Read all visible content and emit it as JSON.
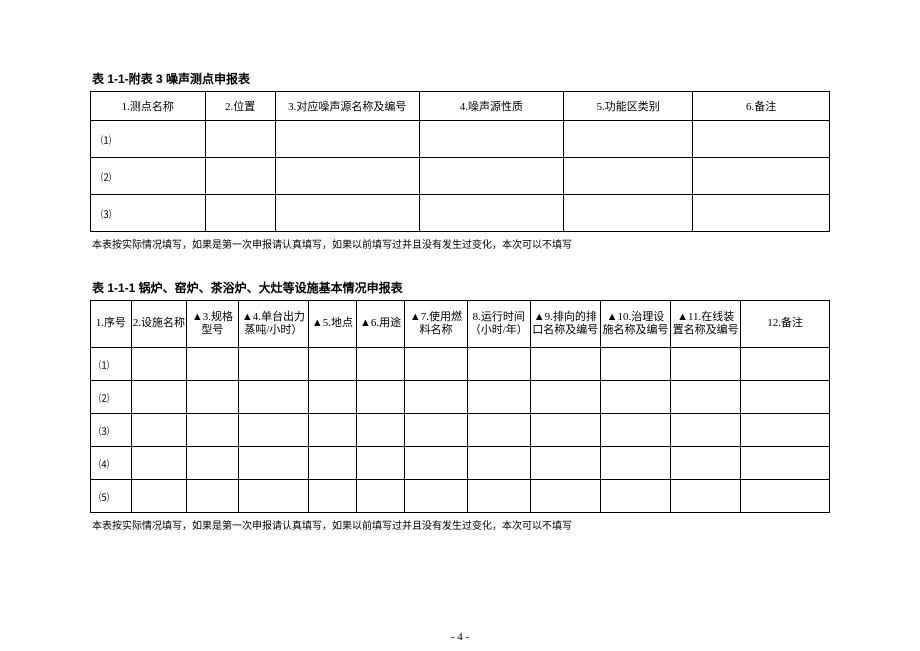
{
  "table1": {
    "title": "表 1-1-附表 3  噪声测点申报表",
    "headers": [
      "1.测点名称",
      "2.位置",
      "3.对应噪声源名称及编号",
      "4.噪声源性质",
      "5.功能区类别",
      "6.备注"
    ],
    "col_widths_pct": [
      15.5,
      9.5,
      19.5,
      19.5,
      17.5,
      18.5
    ],
    "rows": [
      "⑴",
      "⑵",
      "⑶"
    ],
    "note": "本表按实际情况填写，如果是第一次申报请认真填写，如果以前填写过并且没有发生过变化，本次可以不填写"
  },
  "table2": {
    "title": "表 1-1-1 锅炉、窑炉、茶浴炉、大灶等设施基本情况申报表",
    "headers": [
      "1.序号",
      "2.设施名称",
      "▲3.规格型号",
      "▲4.单台出力蒸吨/小时）",
      "▲5.地点",
      "▲6.用途",
      "▲7.使用燃料名称",
      "8.运行时间（小时/年）",
      "▲9.排向的排口名称及编号",
      "▲10.治理设施名称及编号",
      "▲11.在线装置名称及编号",
      "12.备注"
    ],
    "col_widths_pct": [
      5.5,
      7.5,
      7.0,
      9.5,
      6.5,
      6.5,
      8.5,
      8.5,
      9.5,
      9.5,
      9.5,
      12.0
    ],
    "rows": [
      "⑴",
      "⑵",
      "⑶",
      "⑷",
      "⑸"
    ],
    "note": "本表按实际情况填写，如果是第一次申报请认真填写，如果以前填写过并且没有发生过变化，本次可以不填写"
  },
  "page_number": "- 4 -"
}
